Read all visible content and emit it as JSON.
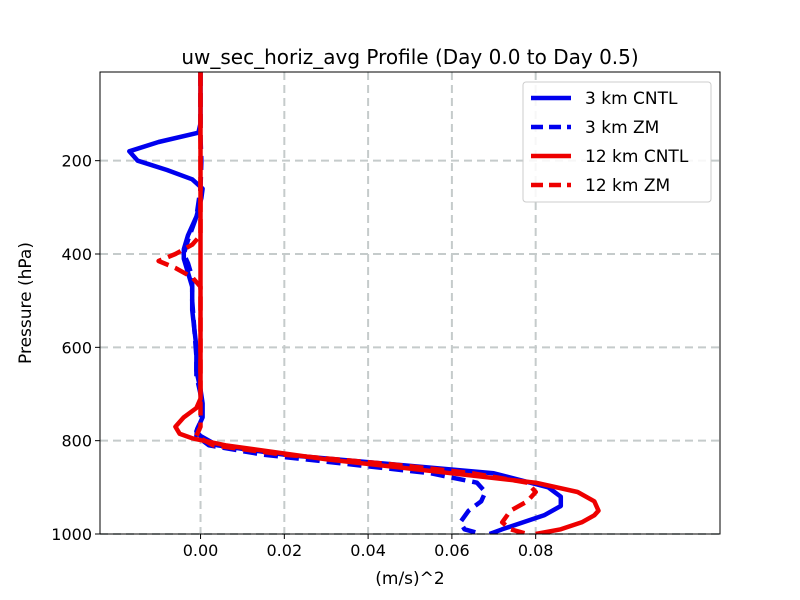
{
  "chart_data": {
    "type": "line",
    "title": "uw_sec_horiz_avg Profile (Day 0.0 to Day 0.5)",
    "xlabel": "(m/s)^2",
    "ylabel": "Pressure (hPa)",
    "xlim": [
      -0.024,
      0.124
    ],
    "ylim": [
      1000,
      10
    ],
    "y_inverted": true,
    "grid": true,
    "legend_position": "top-right",
    "xticks": [
      0.0,
      0.02,
      0.04,
      0.06,
      0.08
    ],
    "xtick_labels": [
      "0.00",
      "0.02",
      "0.04",
      "0.06",
      "0.08"
    ],
    "yticks": [
      200,
      400,
      600,
      800,
      1000
    ],
    "ytick_labels": [
      "200",
      "400",
      "600",
      "800",
      "1000"
    ],
    "colors": {
      "blue": "#0000ee",
      "red": "#ee0000",
      "grid": "#c5cbcb"
    },
    "series": [
      {
        "name": "3 km CNTL",
        "color": "#0000ee",
        "style": "solid",
        "x": [
          0.0,
          0.0,
          -0.0005,
          -0.01,
          -0.017,
          -0.015,
          -0.008,
          -0.002,
          0.0005,
          0.0002,
          -0.001,
          -0.003,
          -0.004,
          -0.004,
          -0.003,
          -0.002,
          -0.002,
          -0.0015,
          -0.001,
          -0.001,
          0.0,
          0.0005,
          0.0005,
          -0.0005,
          -0.001,
          0.0,
          0.004,
          0.02,
          0.045,
          0.07,
          0.083,
          0.086,
          0.086,
          0.082,
          0.072,
          0.069
        ],
        "y": [
          10,
          120,
          140,
          160,
          180,
          200,
          220,
          240,
          260,
          280,
          320,
          360,
          390,
          410,
          440,
          470,
          520,
          560,
          600,
          650,
          690,
          720,
          750,
          770,
          780,
          790,
          810,
          830,
          850,
          870,
          900,
          920,
          940,
          960,
          990,
          1000
        ]
      },
      {
        "name": "3 km ZM",
        "color": "#0000ee",
        "style": "dashed",
        "x": [
          0.0,
          0.0,
          0.0002,
          0.0,
          -0.001,
          -0.003,
          -0.004,
          -0.003,
          -0.002,
          -0.002,
          -0.0015,
          -0.001,
          -0.001,
          0.0,
          0.0003,
          0.0,
          -0.0008,
          -0.001,
          0.002,
          0.015,
          0.035,
          0.055,
          0.066,
          0.068,
          0.067,
          0.064,
          0.062,
          0.063,
          0.067
        ],
        "y": [
          10,
          150,
          200,
          260,
          320,
          370,
          400,
          420,
          450,
          500,
          560,
          620,
          660,
          700,
          730,
          760,
          775,
          790,
          810,
          830,
          850,
          870,
          890,
          910,
          930,
          950,
          975,
          990,
          1000
        ]
      },
      {
        "name": "12 km CNTL",
        "color": "#ee0000",
        "style": "solid",
        "x": [
          0.0,
          0.0,
          0.0,
          0.0,
          0.0,
          0.0,
          -0.001,
          -0.004,
          -0.006,
          -0.005,
          -0.002,
          0.006,
          0.03,
          0.06,
          0.08,
          0.09,
          0.094,
          0.095,
          0.094,
          0.091,
          0.086,
          0.08
        ],
        "y": [
          10,
          200,
          400,
          600,
          680,
          710,
          730,
          750,
          770,
          785,
          795,
          810,
          840,
          870,
          890,
          910,
          930,
          950,
          960,
          975,
          990,
          1000
        ]
      },
      {
        "name": "12 km ZM",
        "color": "#ee0000",
        "style": "dashed",
        "x": [
          0.0,
          0.0,
          0.0,
          -0.002,
          -0.006,
          -0.01,
          -0.006,
          -0.002,
          0.0,
          0.0,
          0.0,
          0.0,
          -0.001,
          0.003,
          0.02,
          0.045,
          0.065,
          0.078,
          0.08,
          0.078,
          0.074,
          0.072,
          0.074,
          0.078
        ],
        "y": [
          10,
          200,
          360,
          380,
          400,
          415,
          430,
          450,
          470,
          600,
          720,
          770,
          790,
          810,
          830,
          850,
          870,
          890,
          910,
          930,
          950,
          975,
          990,
          1000
        ]
      }
    ]
  }
}
